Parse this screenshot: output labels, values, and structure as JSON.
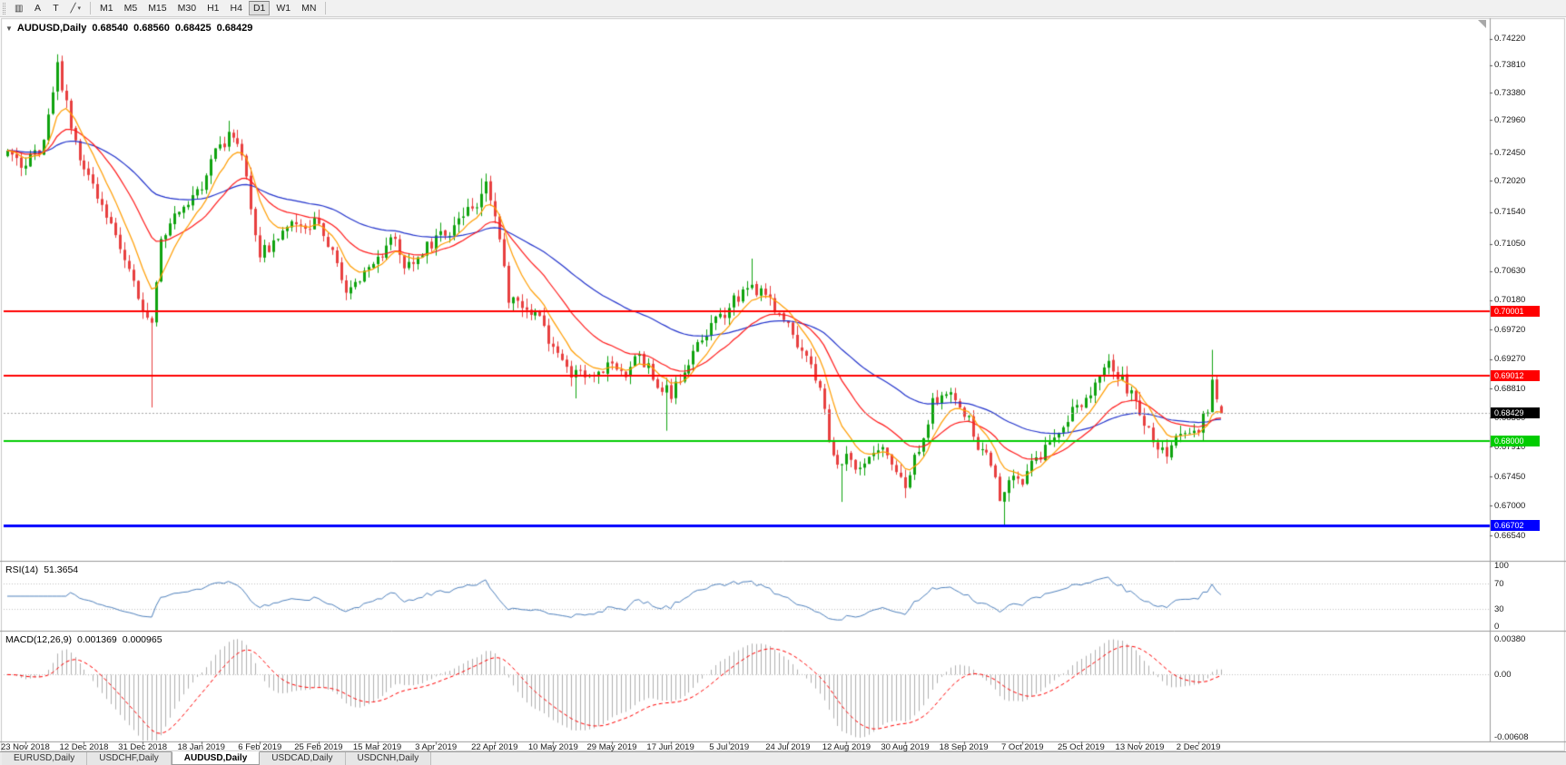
{
  "toolbar": {
    "left_buttons": [
      {
        "name": "chart-type-icon",
        "glyph": "▥"
      },
      {
        "name": "arrow-tool-button",
        "label": "A"
      },
      {
        "name": "text-tool-button",
        "label": "T"
      },
      {
        "name": "line-tool-dropdown",
        "glyph": "╱",
        "caret": "▾"
      }
    ],
    "timeframes": [
      "M1",
      "M5",
      "M15",
      "M30",
      "H1",
      "H4",
      "D1",
      "W1",
      "MN"
    ],
    "active_timeframe": "D1"
  },
  "chart": {
    "title": {
      "collapse_icon": "▼",
      "symbol": "AUDUSD,Daily",
      "open": "0.68540",
      "high": "0.68560",
      "low": "0.68425",
      "close": "0.68429"
    },
    "price_axis_labels": [
      "0.74220",
      "0.73810",
      "0.73380",
      "0.72960",
      "0.72450",
      "0.72020",
      "0.71540",
      "0.71050",
      "0.70630",
      "0.70180",
      "0.69720",
      "0.69270",
      "0.68810",
      "0.68360",
      "0.67910",
      "0.67450",
      "0.67000",
      "0.66540"
    ],
    "levels": [
      {
        "label": "0.70001",
        "value": 0.70001,
        "color": "#FF0000",
        "width": 2,
        "type": "resistance-line"
      },
      {
        "label": "0.69012",
        "value": 0.69012,
        "color": "#FF0000",
        "width": 2,
        "type": "resistance-line"
      },
      {
        "label": "0.68000",
        "value": 0.68,
        "color": "#00CC00",
        "width": 2,
        "type": "support-line"
      },
      {
        "label": "0.66702",
        "value": 0.66702,
        "color": "#0000FF",
        "width": 3,
        "type": "support-line"
      }
    ],
    "bid": {
      "label": "0.68429",
      "value": 0.68429,
      "box_color": "#000000"
    },
    "date_axis_labels": [
      "23 Nov 2018",
      "12 Dec 2018",
      "31 Dec 2018",
      "18 Jan 2019",
      "6 Feb 2019",
      "25 Feb 2019",
      "15 Mar 2019",
      "3 Apr 2019",
      "22 Apr 2019",
      "10 May 2019",
      "29 May 2019",
      "17 Jun 2019",
      "5 Jul 2019",
      "24 Jul 2019",
      "12 Aug 2019",
      "30 Aug 2019",
      "18 Sep 2019",
      "7 Oct 2019",
      "25 Oct 2019",
      "13 Nov 2019",
      "2 Dec 2019"
    ]
  },
  "chart_data": {
    "type": "candlestick",
    "symbol": "AUDUSD",
    "timeframe": "Daily",
    "bars": 270,
    "y_axis": {
      "max": 0.7448,
      "min": 0.6622
    },
    "tick_first_index": 4,
    "tick_step": 13,
    "up_color": "#0FA30F",
    "down_color": "#E83F3F",
    "trend_anchors": [
      [
        0,
        0.7245
      ],
      [
        4,
        0.7225
      ],
      [
        8,
        0.7262
      ],
      [
        11,
        0.738
      ],
      [
        14,
        0.7289
      ],
      [
        17,
        0.7216
      ],
      [
        21,
        0.7172
      ],
      [
        25,
        0.7103
      ],
      [
        28,
        0.7038
      ],
      [
        30,
        0.7003
      ],
      [
        32,
        0.6992
      ],
      [
        34,
        0.7118
      ],
      [
        38,
        0.7154
      ],
      [
        43,
        0.7196
      ],
      [
        46,
        0.7242
      ],
      [
        49,
        0.7272
      ],
      [
        52,
        0.7238
      ],
      [
        56,
        0.7092
      ],
      [
        59,
        0.7106
      ],
      [
        63,
        0.7131
      ],
      [
        66,
        0.7126
      ],
      [
        69,
        0.7142
      ],
      [
        72,
        0.7092
      ],
      [
        75,
        0.7031
      ],
      [
        78,
        0.7046
      ],
      [
        82,
        0.7082
      ],
      [
        85,
        0.7121
      ],
      [
        88,
        0.7072
      ],
      [
        92,
        0.7091
      ],
      [
        95,
        0.7112
      ],
      [
        99,
        0.7131
      ],
      [
        103,
        0.7162
      ],
      [
        106,
        0.7191
      ],
      [
        108,
        0.7152
      ],
      [
        111,
        0.7016
      ],
      [
        114,
        0.7006
      ],
      [
        118,
        0.6986
      ],
      [
        121,
        0.6941
      ],
      [
        125,
        0.6902
      ],
      [
        129,
        0.6896
      ],
      [
        134,
        0.6926
      ],
      [
        137,
        0.6906
      ],
      [
        140,
        0.6931
      ],
      [
        144,
        0.6891
      ],
      [
        147,
        0.6872
      ],
      [
        151,
        0.6926
      ],
      [
        155,
        0.6966
      ],
      [
        160,
        0.7006
      ],
      [
        164,
        0.7041
      ],
      [
        168,
        0.7026
      ],
      [
        173,
        0.6976
      ],
      [
        177,
        0.6931
      ],
      [
        180,
        0.6881
      ],
      [
        182,
        0.6801
      ],
      [
        184,
        0.6756
      ],
      [
        186,
        0.6786
      ],
      [
        189,
        0.6756
      ],
      [
        193,
        0.6786
      ],
      [
        196,
        0.6771
      ],
      [
        199,
        0.6736
      ],
      [
        202,
        0.6791
      ],
      [
        205,
        0.6856
      ],
      [
        208,
        0.6881
      ],
      [
        212,
        0.6846
      ],
      [
        215,
        0.6796
      ],
      [
        218,
        0.6761
      ],
      [
        220,
        0.6711
      ],
      [
        223,
        0.6746
      ],
      [
        225,
        0.6736
      ],
      [
        228,
        0.6771
      ],
      [
        231,
        0.6801
      ],
      [
        234,
        0.6831
      ],
      [
        238,
        0.6856
      ],
      [
        241,
        0.6886
      ],
      [
        244,
        0.6916
      ],
      [
        247,
        0.6896
      ],
      [
        251,
        0.6841
      ],
      [
        254,
        0.6801
      ],
      [
        257,
        0.6786
      ],
      [
        260,
        0.6806
      ],
      [
        264,
        0.6821
      ],
      [
        266,
        0.6851
      ],
      [
        267,
        0.6896
      ],
      [
        268,
        0.6861
      ],
      [
        269,
        0.68429
      ]
    ],
    "wick_extremes": [
      {
        "i": 11,
        "high": 0.7397
      },
      {
        "i": 32,
        "low": 0.6852
      },
      {
        "i": 49,
        "high": 0.7295
      },
      {
        "i": 105,
        "high": 0.7206
      },
      {
        "i": 126,
        "low": 0.6866
      },
      {
        "i": 146,
        "low": 0.6816
      },
      {
        "i": 165,
        "high": 0.7082
      },
      {
        "i": 185,
        "low": 0.6706
      },
      {
        "i": 199,
        "low": 0.6712
      },
      {
        "i": 221,
        "low": 0.6671
      },
      {
        "i": 244,
        "high": 0.6932
      },
      {
        "i": 267,
        "high": 0.6941
      }
    ],
    "last_bar": {
      "open": 0.6854,
      "high": 0.6856,
      "low": 0.68425,
      "close": 0.68429
    },
    "moving_averages": [
      {
        "period": 8,
        "color": "#FF9D00"
      },
      {
        "period": 21,
        "color": "#FF1A1A"
      },
      {
        "period": 55,
        "color": "#2233CC"
      }
    ]
  },
  "rsi": {
    "label": "RSI(14)",
    "value": "51.3654",
    "period": 14,
    "axis_labels": [
      100,
      70,
      30,
      0
    ],
    "level_lines": [
      70,
      30
    ],
    "line_color": "#4F81BD"
  },
  "macd": {
    "label": "MACD(12,26,9)",
    "macd_value": "0.001369",
    "signal_value": "0.000965",
    "fast": 12,
    "slow": 26,
    "signal": 9,
    "axis_labels": [
      "0.00380",
      "0.00",
      "-0.00608"
    ],
    "axis_values": [
      0.0038,
      0,
      -0.00608
    ],
    "axis_max": 0.0038,
    "axis_min": -0.00608,
    "histogram_color": "#B0B0B0",
    "signal_color": "#FF0000"
  },
  "tabs": {
    "items": [
      {
        "label": "EURUSD,Daily",
        "active": false
      },
      {
        "label": "USDCHF,Daily",
        "active": false
      },
      {
        "label": "AUDUSD,Daily",
        "active": true
      },
      {
        "label": "USDCAD,Daily",
        "active": false
      },
      {
        "label": "USDCNH,Daily",
        "active": false
      }
    ]
  }
}
